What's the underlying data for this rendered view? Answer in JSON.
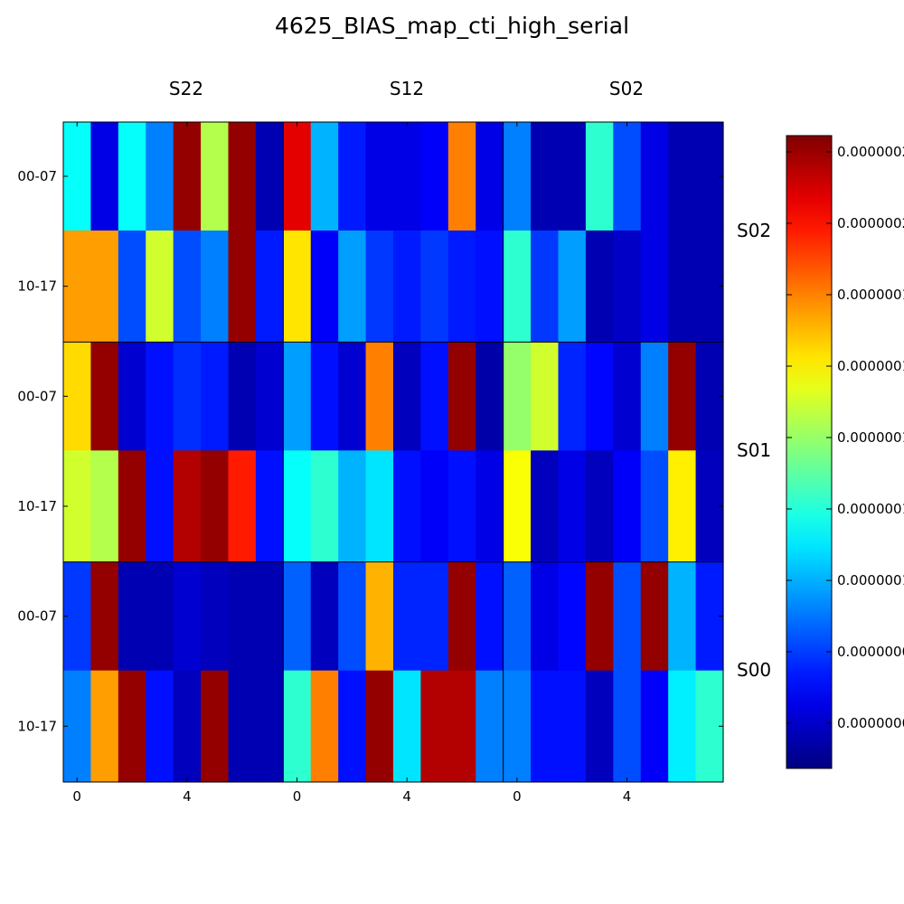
{
  "chart_data": {
    "type": "heatmap",
    "title": "4625_BIAS_map_cti_high_serial",
    "column_groups": [
      "S22",
      "S12",
      "S02"
    ],
    "row_groups": [
      "S02",
      "S01",
      "S00"
    ],
    "x_tick_labels": [
      "0",
      "4"
    ],
    "y_tick_labels": [
      "00-07",
      "10-17"
    ],
    "colorbar_tick_labels": [
      "0.0000000",
      "0.0000000",
      "0.0000001",
      "0.0000001",
      "0.0000001",
      "0.0000001",
      "0.0000001",
      "0.0000002",
      "0.0000002"
    ],
    "colormap": "jet",
    "vmin": 0,
    "vmax": 1,
    "grid": false,
    "cells": [
      [
        [
          0.38,
          0.1,
          0.38,
          0.25,
          0.98,
          0.55,
          0.98,
          0.05,
          0.9,
          0.3,
          0.15,
          0.1,
          0.1,
          0.12,
          0.75,
          0.1,
          0.25,
          0.05,
          0.05,
          0.42,
          0.2,
          0.1,
          0.05,
          0.05
        ],
        [
          0.72,
          0.72,
          0.2,
          0.58,
          0.2,
          0.25,
          0.98,
          0.15,
          0.65,
          0.12,
          0.28,
          0.18,
          0.15,
          0.18,
          0.15,
          0.14,
          0.42,
          0.18,
          0.28,
          0.05,
          0.07,
          0.1,
          0.05,
          0.05
        ]
      ],
      [
        [
          0.66,
          0.98,
          0.08,
          0.14,
          0.17,
          0.15,
          0.05,
          0.08,
          0.28,
          0.14,
          0.08,
          0.75,
          0.06,
          0.14,
          0.98,
          0.04,
          0.52,
          0.58,
          0.16,
          0.13,
          0.08,
          0.25,
          0.98,
          0.05
        ],
        [
          0.58,
          0.55,
          0.98,
          0.14,
          0.95,
          0.98,
          0.85,
          0.14,
          0.38,
          0.42,
          0.3,
          0.35,
          0.14,
          0.12,
          0.14,
          0.1,
          0.62,
          0.06,
          0.1,
          0.06,
          0.12,
          0.2,
          0.64,
          0.06
        ]
      ],
      [
        [
          0.18,
          0.98,
          0.05,
          0.05,
          0.08,
          0.06,
          0.05,
          0.05,
          0.22,
          0.06,
          0.2,
          0.7,
          0.16,
          0.16,
          0.98,
          0.14,
          0.22,
          0.1,
          0.13,
          0.98,
          0.2,
          0.98,
          0.3,
          0.15
        ],
        [
          0.25,
          0.72,
          0.98,
          0.14,
          0.06,
          0.98,
          0.05,
          0.05,
          0.42,
          0.75,
          0.14,
          0.98,
          0.35,
          0.95,
          0.95,
          0.25,
          0.25,
          0.14,
          0.14,
          0.06,
          0.2,
          0.12,
          0.36,
          0.42
        ]
      ]
    ]
  }
}
